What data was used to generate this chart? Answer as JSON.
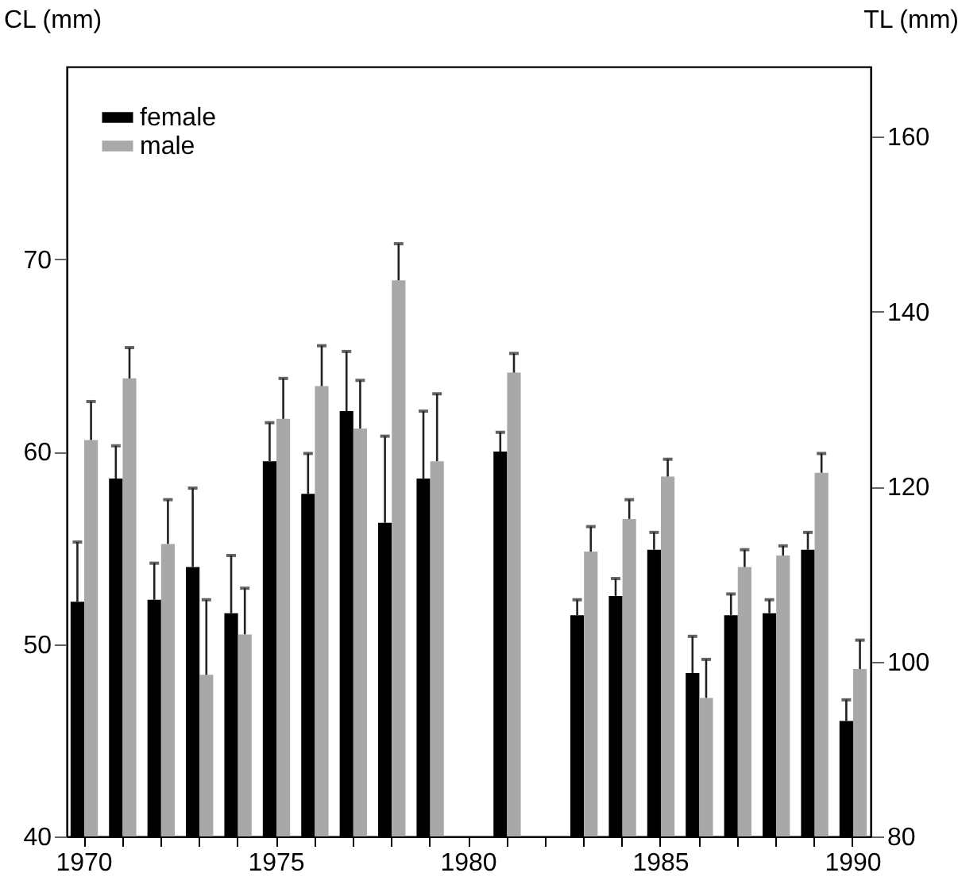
{
  "chart_data": {
    "type": "bar",
    "categories": [
      "1970",
      null,
      null,
      null,
      null,
      "1975",
      null,
      null,
      null,
      null,
      "1980",
      null,
      null,
      null,
      null,
      "1985",
      null,
      null,
      null,
      null,
      "1990"
    ],
    "series": [
      {
        "name": "female",
        "color": "#000000",
        "values": [
          52.2,
          58.6,
          52.3,
          54.0,
          51.6,
          59.5,
          57.8,
          62.1,
          56.3,
          58.6,
          null,
          60.0,
          null,
          51.5,
          52.5,
          54.9,
          48.5,
          51.5,
          51.6,
          54.9,
          46.0
        ],
        "errors": [
          [
            52.2,
            55.3
          ],
          [
            58.6,
            60.3
          ],
          [
            52.3,
            54.2
          ],
          [
            54.0,
            58.1
          ],
          [
            51.6,
            54.6
          ],
          [
            59.5,
            61.5
          ],
          [
            57.8,
            59.9
          ],
          [
            62.1,
            65.2
          ],
          [
            56.3,
            60.8
          ],
          [
            58.6,
            62.1
          ],
          null,
          [
            60.0,
            61.0
          ],
          null,
          [
            51.5,
            52.3
          ],
          [
            52.5,
            53.4
          ],
          [
            54.9,
            55.8
          ],
          [
            48.5,
            50.4
          ],
          [
            51.5,
            52.6
          ],
          [
            51.6,
            52.3
          ],
          [
            54.9,
            55.8
          ],
          [
            46.0,
            47.1
          ]
        ]
      },
      {
        "name": "male",
        "color": "#a8a8a8",
        "values": [
          60.6,
          63.8,
          55.2,
          48.4,
          50.5,
          61.7,
          63.4,
          61.2,
          68.9,
          59.5,
          null,
          64.1,
          null,
          54.8,
          56.5,
          58.7,
          47.2,
          54.0,
          54.6,
          58.9,
          48.7
        ],
        "errors": [
          [
            60.6,
            62.6
          ],
          [
            63.8,
            65.4
          ],
          [
            55.2,
            57.5
          ],
          [
            48.4,
            52.3
          ],
          [
            50.5,
            52.9
          ],
          [
            61.7,
            63.8
          ],
          [
            63.4,
            65.5
          ],
          [
            61.2,
            63.7
          ],
          [
            68.9,
            70.8
          ],
          [
            59.5,
            63.0
          ],
          null,
          [
            64.1,
            65.1
          ],
          null,
          [
            54.8,
            56.1
          ],
          [
            56.5,
            57.5
          ],
          [
            58.7,
            59.6
          ],
          [
            47.2,
            49.2
          ],
          [
            54.0,
            54.9
          ],
          [
            54.6,
            55.1
          ],
          [
            58.9,
            59.9
          ],
          [
            48.7,
            50.2
          ]
        ]
      }
    ],
    "ylabel": "CL (mm)",
    "y2label": "TL (mm)",
    "ylim": [
      40,
      80
    ],
    "yticks": [
      40,
      50,
      60,
      70
    ],
    "y2lim": [
      80,
      168
    ],
    "y2ticks": [
      80,
      100,
      120,
      140,
      160
    ],
    "legend": "top left"
  }
}
